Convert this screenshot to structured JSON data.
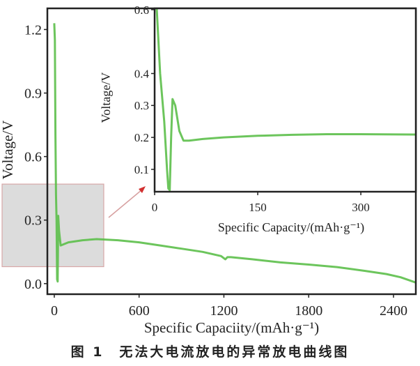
{
  "chart_data": [
    {
      "type": "line",
      "xlabel": "Specific Capaciity/(mAh·g⁻¹)",
      "ylabel": "Voltage/V",
      "xlim": [
        -49,
        2558
      ],
      "ylim": [
        -0.05,
        1.3
      ],
      "xticks": [
        0,
        600,
        1200,
        1800,
        2400
      ],
      "yticks": [
        0.0,
        0.3,
        0.6,
        0.9,
        1.2
      ],
      "xtick_labels": [
        "0",
        "600",
        "1200",
        "1800",
        "2400"
      ],
      "ytick_labels": [
        "0.0",
        "0.3",
        "0.6",
        "0.9",
        "1.2"
      ],
      "grid": false,
      "color": "#5cbf4a",
      "x": [
        0,
        4,
        8,
        12,
        16,
        20,
        24,
        28,
        34,
        45,
        100,
        200,
        300,
        450,
        600,
        750,
        900,
        1050,
        1180,
        1210,
        1225,
        1250,
        1400,
        1600,
        1800,
        2000,
        2200,
        2350,
        2450,
        2558
      ],
      "y": [
        1.23,
        1.15,
        0.7,
        0.42,
        0.3,
        0.02,
        0.01,
        0.32,
        0.25,
        0.18,
        0.195,
        0.205,
        0.21,
        0.205,
        0.195,
        0.18,
        0.165,
        0.15,
        0.13,
        0.115,
        0.125,
        0.125,
        0.115,
        0.1,
        0.09,
        0.078,
        0.06,
        0.045,
        0.03,
        0.005
      ],
      "highlight_region": {
        "x": [
          -60,
          350
        ],
        "y": [
          0.08,
          0.47
        ]
      }
    },
    {
      "type": "line",
      "inset": true,
      "xlabel": "Specific Capacity/(mAh·g⁻¹)",
      "ylabel": "Voltage/V",
      "xlim": [
        0,
        380
      ],
      "ylim": [
        0.03,
        0.604
      ],
      "xticks": [
        0,
        150,
        300
      ],
      "yticks": [
        0.1,
        0.2,
        0.3,
        0.4,
        0.6
      ],
      "xtick_labels": [
        "0",
        "150",
        "300"
      ],
      "ytick_labels": [
        "0.1",
        "0.2",
        "0.3",
        "0.4",
        "0.6"
      ],
      "grid": false,
      "color": "#5cbf4a",
      "x": [
        3,
        8,
        14,
        18,
        20,
        22,
        24,
        26,
        30,
        36,
        42,
        50,
        70,
        100,
        150,
        200,
        250,
        300,
        380
      ],
      "y": [
        0.604,
        0.4,
        0.25,
        0.1,
        0.04,
        0.035,
        0.2,
        0.32,
        0.3,
        0.22,
        0.19,
        0.19,
        0.195,
        0.2,
        0.205,
        0.208,
        0.21,
        0.21,
        0.209
      ]
    }
  ],
  "caption": "图 1　无法大电流放电的异常放电曲线图"
}
